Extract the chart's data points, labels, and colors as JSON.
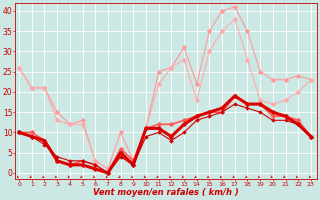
{
  "bg_color": "#cce8e4",
  "grid_color": "#ffffff",
  "xlabel": "Vent moyen/en rafales ( km/h )",
  "ylabel_ticks": [
    0,
    5,
    10,
    15,
    20,
    25,
    30,
    35,
    40
  ],
  "xlim": [
    -0.3,
    23.5
  ],
  "ylim": [
    -1.5,
    42
  ],
  "x_ticks": [
    0,
    1,
    2,
    3,
    4,
    5,
    6,
    7,
    8,
    9,
    10,
    11,
    12,
    13,
    14,
    15,
    16,
    17,
    18,
    19,
    20,
    21,
    22,
    23
  ],
  "series": [
    {
      "x": [
        0,
        1,
        2,
        3,
        4,
        5,
        6,
        7,
        8,
        9,
        10,
        11,
        12,
        13,
        14,
        15,
        16,
        17,
        18,
        19,
        20,
        21,
        22,
        23
      ],
      "y": [
        26,
        21,
        21,
        15,
        12,
        13,
        3,
        1,
        10,
        3,
        11,
        25,
        26,
        31,
        22,
        35,
        40,
        41,
        35,
        25,
        23,
        23,
        24,
        23
      ],
      "color": "#ff9999",
      "lw": 0.8,
      "ms": 2.5
    },
    {
      "x": [
        0,
        1,
        2,
        3,
        4,
        5,
        6,
        7,
        8,
        9,
        10,
        11,
        12,
        13,
        14,
        15,
        16,
        17,
        18,
        19,
        20,
        21,
        22,
        23
      ],
      "y": [
        26,
        21,
        21,
        13,
        12,
        12,
        3,
        1,
        5,
        2,
        11,
        22,
        26,
        28,
        18,
        30,
        35,
        38,
        28,
        18,
        17,
        18,
        20,
        23
      ],
      "color": "#ffaaaa",
      "lw": 0.8,
      "ms": 2.5
    },
    {
      "x": [
        0,
        1,
        2,
        3,
        4,
        5,
        6,
        7,
        8,
        9,
        10,
        11,
        12,
        13,
        14,
        15,
        16,
        17,
        18,
        19,
        20,
        21,
        22,
        23
      ],
      "y": [
        10,
        10,
        8,
        3,
        2,
        3,
        2,
        0,
        6,
        3,
        11,
        12,
        12,
        13,
        14,
        15,
        15,
        19,
        17,
        17,
        14,
        14,
        13,
        9
      ],
      "color": "#ff5555",
      "lw": 1.2,
      "ms": 2.5
    },
    {
      "x": [
        0,
        1,
        2,
        3,
        4,
        5,
        6,
        7,
        8,
        9,
        10,
        11,
        12,
        13,
        14,
        15,
        16,
        17,
        18,
        19,
        20,
        21,
        22,
        23
      ],
      "y": [
        10,
        9,
        8,
        3,
        2,
        2,
        1,
        0,
        5,
        2,
        11,
        11,
        9,
        12,
        14,
        15,
        16,
        19,
        17,
        17,
        15,
        14,
        12,
        9
      ],
      "color": "#dd0000",
      "lw": 2.2,
      "ms": 2.5
    },
    {
      "x": [
        0,
        1,
        2,
        3,
        4,
        5,
        6,
        7,
        8,
        9,
        10,
        11,
        12,
        13,
        14,
        15,
        16,
        17,
        18,
        19,
        20,
        21,
        22,
        23
      ],
      "y": [
        10,
        9,
        7,
        4,
        3,
        3,
        2,
        0,
        4,
        2,
        9,
        10,
        8,
        10,
        13,
        14,
        15,
        17,
        16,
        15,
        13,
        13,
        12,
        9
      ],
      "color": "#cc0000",
      "lw": 0.8,
      "ms": 2.0
    }
  ]
}
